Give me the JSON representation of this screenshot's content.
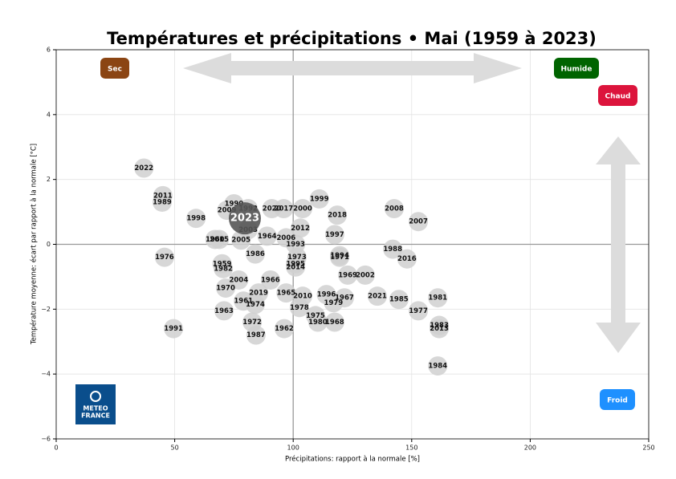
{
  "chart_data": {
    "type": "scatter",
    "title": "Températures et précipitations • Mai (1959 à 2023)",
    "xlabel": "Précipitations: rapport à la normale [%]",
    "ylabel": "Température moyenne: écart par rapport à la normale [°C]",
    "xlim": [
      0,
      250
    ],
    "ylim": [
      -6,
      6
    ],
    "xticks": [
      0,
      50,
      100,
      150,
      200,
      250
    ],
    "yticks": [
      {
        "value": -6,
        "label": "−6"
      },
      {
        "value": -4,
        "label": "−4"
      },
      {
        "value": -2,
        "label": "−2"
      },
      0,
      2,
      4,
      6
    ],
    "grid": true,
    "x_ref": 100,
    "y_ref": 0,
    "series": [
      {
        "color": "#d0d0d0",
        "labels": [
          "2022",
          "2011",
          "1989",
          "1998",
          "1990",
          "2009",
          "1992",
          "2020",
          "2017",
          "2000",
          "1999",
          "2018",
          "2008",
          "2007",
          "2003",
          "2012",
          "1964",
          "2006",
          "1997",
          "1960",
          "2015",
          "2005",
          "1993",
          "1988",
          "2016",
          "1976",
          "1986",
          "1973",
          "1994",
          "1971",
          "1995",
          "2014",
          "1959",
          "1982",
          "1969",
          "2002",
          "2004",
          "1966",
          "1970",
          "2019",
          "1965",
          "2010",
          "1996",
          "1967",
          "1979",
          "2021",
          "1985",
          "1981",
          "1961",
          "1974",
          "1978",
          "1963",
          "1977",
          "1975",
          "1980",
          "1968",
          "1972",
          "1983",
          "2013",
          "1991",
          "1962",
          "1987",
          "1984"
        ],
        "x": [
          37,
          45,
          44.7,
          59,
          75,
          72,
          81,
          91,
          96,
          104,
          111,
          118.6,
          142.6,
          152.8,
          81,
          103,
          89,
          97,
          117.5,
          67,
          68.8,
          78,
          101,
          142,
          148,
          45.7,
          84,
          101.6,
          119.6,
          119.6,
          101,
          101,
          70,
          70.5,
          123,
          130.4,
          77,
          90.4,
          71.5,
          85.4,
          97,
          104,
          114,
          121.6,
          117,
          135.5,
          144.6,
          161,
          79,
          84,
          102.6,
          70.8,
          152.8,
          109.4,
          110.4,
          117.5,
          82.7,
          161.6,
          161.6,
          49.5,
          96.2,
          84.3,
          161
        ],
        "values": [
          2.35,
          1.5,
          1.3,
          0.8,
          1.25,
          1.05,
          1.1,
          1.1,
          1.1,
          1.1,
          1.4,
          0.9,
          1.1,
          0.7,
          0.45,
          0.5,
          0.25,
          0.2,
          0.3,
          0.15,
          0.15,
          0.13,
          0.0,
          -0.15,
          -0.45,
          -0.4,
          -0.3,
          -0.4,
          -0.35,
          -0.4,
          -0.6,
          -0.7,
          -0.6,
          -0.75,
          -0.95,
          -0.95,
          -1.1,
          -1.1,
          -1.35,
          -1.5,
          -1.5,
          -1.6,
          -1.55,
          -1.65,
          -1.8,
          -1.6,
          -1.7,
          -1.65,
          -1.75,
          -1.85,
          -1.95,
          -2.05,
          -2.05,
          -2.2,
          -2.4,
          -2.4,
          -2.4,
          -2.5,
          -2.6,
          -2.6,
          -2.6,
          -2.8,
          -3.75
        ]
      },
      {
        "color": "#555555",
        "labels": [
          "2023"
        ],
        "x": [
          79.6
        ],
        "values": [
          0.8
        ]
      }
    ],
    "annotations": [
      {
        "text": "Sec",
        "color": "#8b4513"
      },
      {
        "text": "Humide",
        "color": "#006400"
      },
      {
        "text": "Chaud",
        "color": "#dc143c"
      },
      {
        "text": "Froid",
        "color": "#1e90ff"
      }
    ],
    "logo": {
      "lines": [
        "METEO",
        "FRANCE"
      ],
      "color": "#0a4e8c"
    }
  }
}
